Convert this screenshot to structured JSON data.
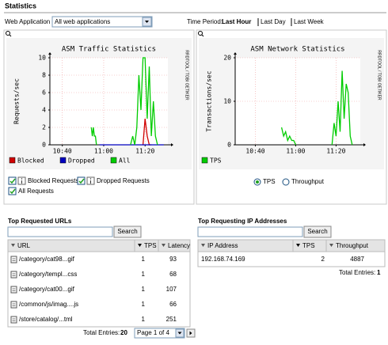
{
  "header": {
    "title": "Statistics"
  },
  "filter": {
    "label": "Web Application",
    "selected": "All web applications"
  },
  "time_period": {
    "label": "Time Period:",
    "options": [
      "Last Hour",
      "Last Day",
      "Last Week"
    ]
  },
  "chart_data": [
    {
      "type": "line",
      "title": "ASM Traffic Statistics",
      "y_label": "Requests/sec",
      "watermark": "RRDTOOL / TOBI OETIKER",
      "xlim": [
        34,
        91
      ],
      "xticks": [
        {
          "value": 40,
          "label": "10:40"
        },
        {
          "value": 60,
          "label": "11:00"
        },
        {
          "value": 80,
          "label": "11:20"
        }
      ],
      "ylim": [
        0,
        10
      ],
      "yticks": [
        0,
        2,
        4,
        6,
        8,
        10
      ],
      "grid": true,
      "series": [
        {
          "name": "Blocked",
          "color": "#d00000",
          "x": [
            79,
            80,
            81,
            82,
            83
          ],
          "values": [
            0,
            3,
            1,
            0,
            0
          ]
        },
        {
          "name": "Dropped",
          "color": "#0000c0",
          "x": [
            58,
            89
          ],
          "values": [
            0,
            0
          ]
        },
        {
          "name": "All",
          "color": "#00cc00",
          "x": [
            54,
            54.5,
            55,
            55.5,
            56,
            56.5,
            null,
            73,
            74,
            75,
            76,
            77,
            78,
            79,
            80,
            81,
            82,
            83,
            84,
            85,
            86
          ],
          "values": [
            2,
            1,
            2,
            1,
            1,
            0,
            null,
            0,
            1,
            0,
            2,
            8,
            4,
            10,
            10,
            3,
            9,
            1,
            5,
            1,
            0
          ]
        }
      ]
    },
    {
      "type": "line",
      "title": "ASM Network Statistics",
      "y_label": "Transactions/sec",
      "watermark": "RRDTOOL / TOBI OETIKER",
      "xlim": [
        30,
        92
      ],
      "xticks": [
        {
          "value": 40,
          "label": "10:40"
        },
        {
          "value": 60,
          "label": "11:00"
        },
        {
          "value": 80,
          "label": "11:20"
        }
      ],
      "ylim": [
        0,
        20
      ],
      "yticks": [
        0,
        10,
        20
      ],
      "grid": true,
      "series": [
        {
          "name": "TPS",
          "color": "#00cc00",
          "x": [
            53,
            54,
            55,
            56,
            57,
            58,
            59,
            60,
            null,
            78,
            79,
            80,
            81,
            82,
            83,
            84,
            85,
            86,
            87,
            88
          ],
          "values": [
            4,
            2,
            3,
            1,
            2,
            1,
            1,
            0,
            null,
            0,
            5,
            2,
            10,
            3,
            17,
            6,
            14,
            12,
            2,
            0
          ]
        }
      ]
    }
  ],
  "chart_options": {
    "checkboxes": [
      "Blocked Requests",
      "Dropped Requests",
      "All Requests"
    ],
    "radios": [
      "TPS",
      "Throughput"
    ]
  },
  "urls_table": {
    "title": "Top Requested URLs",
    "search_button": "Search",
    "columns": [
      "URL",
      "TPS",
      "Latency"
    ],
    "rows": [
      [
        "/category/cat98...gif",
        1,
        93
      ],
      [
        "/category/templ...css",
        1,
        68
      ],
      [
        "/category/cat00...gif",
        1,
        107
      ],
      [
        "/common/js/imag....js",
        1,
        66
      ],
      [
        "/store/catalog/...tml",
        1,
        251
      ]
    ],
    "total_label": "Total Entries:",
    "total": 20,
    "page": "Page 1 of 4"
  },
  "ip_table": {
    "title": "Top Requesting IP Addresses",
    "search_button": "Search",
    "columns": [
      "IP Address",
      "TPS",
      "Throughput"
    ],
    "rows": [
      [
        "192.168.74.169",
        2,
        4887
      ]
    ],
    "total_label": "Total Entries:",
    "total": 1
  }
}
